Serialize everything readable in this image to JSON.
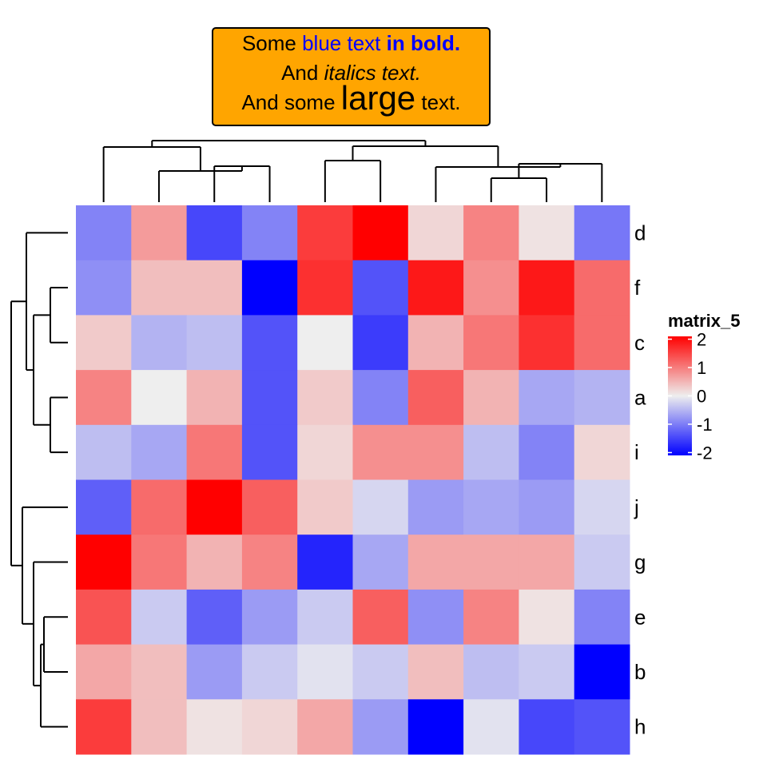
{
  "title": {
    "line1": {
      "plain": "Some ",
      "blue": "blue text",
      "space": " ",
      "blue_bold": "in bold."
    },
    "line2": {
      "plain": "And ",
      "italic": "italics text."
    },
    "line3": {
      "before": "And some ",
      "large": "large",
      "after": " text."
    },
    "colors": {
      "box_fill": "#FFA500",
      "blue": "#0000FF"
    }
  },
  "chart_data": {
    "type": "heatmap",
    "name": "matrix_5",
    "row_labels": [
      "d",
      "f",
      "c",
      "a",
      "i",
      "j",
      "g",
      "e",
      "b",
      "h"
    ],
    "n_cols": 10,
    "values": [
      [
        -0.9,
        0.7,
        -1.4,
        -0.9,
        1.5,
        2.2,
        0.2,
        0.9,
        0.1,
        -1.0
      ],
      [
        -0.8,
        0.4,
        0.4,
        -2.0,
        1.6,
        -1.3,
        1.8,
        0.8,
        1.8,
        1.1
      ],
      [
        0.3,
        -0.5,
        -0.4,
        -1.3,
        0.0,
        -1.5,
        0.5,
        1.0,
        1.6,
        1.1
      ],
      [
        0.9,
        0.0,
        0.5,
        -1.3,
        0.3,
        -0.9,
        1.2,
        0.5,
        -0.6,
        -0.5
      ],
      [
        -0.4,
        -0.6,
        1.0,
        -1.3,
        0.2,
        0.8,
        0.8,
        -0.4,
        -0.9,
        0.2
      ],
      [
        -1.2,
        1.1,
        2.0,
        1.2,
        0.3,
        -0.2,
        -0.7,
        -0.6,
        -0.7,
        -0.2
      ],
      [
        2.2,
        1.0,
        0.5,
        0.9,
        -1.7,
        -0.6,
        0.6,
        0.6,
        0.6,
        -0.3
      ],
      [
        1.3,
        -0.3,
        -1.2,
        -0.7,
        -0.3,
        1.2,
        -0.8,
        0.9,
        0.1,
        -0.9
      ],
      [
        0.6,
        0.4,
        -0.7,
        -0.3,
        -0.1,
        -0.3,
        0.4,
        -0.4,
        -0.3,
        -2.5
      ],
      [
        1.5,
        0.4,
        0.1,
        0.2,
        0.6,
        -0.7,
        -2.1,
        -0.1,
        -1.4,
        -1.3
      ]
    ],
    "column_dendrogram": [
      [
        0,
        9
      ],
      [
        1,
        10
      ],
      [
        2,
        11
      ],
      [
        5,
        12
      ],
      [
        4,
        13
      ],
      [
        3,
        14
      ],
      [
        6,
        15
      ],
      [
        8,
        16
      ],
      [
        7,
        17
      ]
    ],
    "column_dendrogram_note": "merges listed as pairs of leaf/cluster ids; see script for tree",
    "legend": {
      "title": "matrix_5",
      "ticks": [
        2,
        1,
        0,
        -1,
        -2
      ],
      "tick_labels": [
        "2",
        "1",
        "0",
        "-1",
        "-2"
      ],
      "color_stops": [
        {
          "value": -2,
          "color": "#0000FF"
        },
        {
          "value": 0,
          "color": "#EEEEEE"
        },
        {
          "value": 2,
          "color": "#FF0000"
        }
      ]
    }
  }
}
